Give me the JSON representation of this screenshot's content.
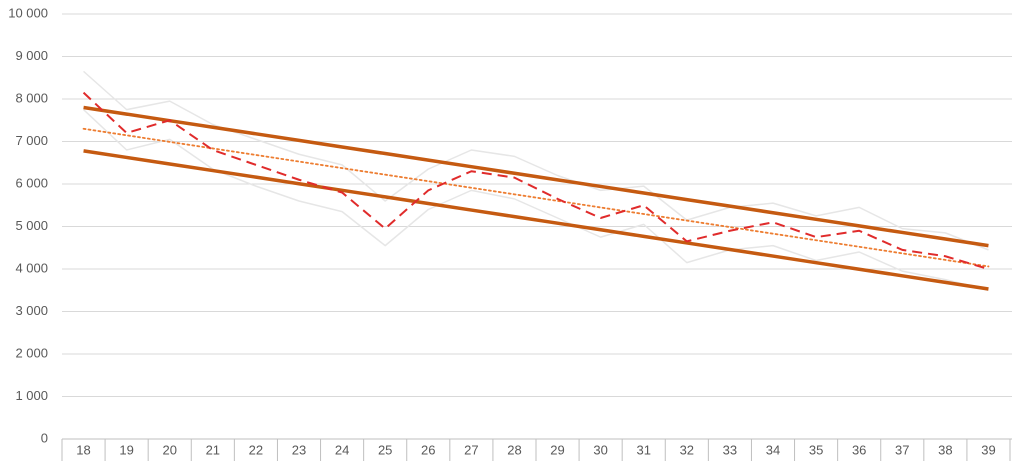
{
  "chart_data": {
    "type": "line",
    "categories": [
      "18",
      "19",
      "20",
      "21",
      "22",
      "23",
      "24",
      "25",
      "26",
      "27",
      "28",
      "29",
      "30",
      "31",
      "32",
      "33",
      "34",
      "35",
      "36",
      "37",
      "38",
      "39"
    ],
    "ylim": [
      0,
      10000
    ],
    "yticks": [
      0,
      {
        "value": 1000,
        "label": "1 000"
      },
      {
        "value": 2000,
        "label": "2 000"
      },
      {
        "value": 3000,
        "label": "3 000"
      },
      {
        "value": 4000,
        "label": "4 000"
      },
      {
        "value": 5000,
        "label": "5 000"
      },
      {
        "value": 6000,
        "label": "6 000"
      },
      {
        "value": 7000,
        "label": "7 000"
      },
      {
        "value": 8000,
        "label": "8 000"
      },
      {
        "value": 9000,
        "label": "9 000"
      },
      {
        "value": 10000,
        "label": "10 000"
      }
    ],
    "grid": true,
    "series": [
      {
        "color": "#e6e6e6",
        "style": "solid",
        "line_width": 1.5,
        "values": [
          8650,
          7750,
          7950,
          7400,
          7050,
          6700,
          6450,
          5600,
          6350,
          6800,
          6650,
          6200,
          5850,
          5950,
          5150,
          5450,
          5550,
          5250,
          5450,
          4950,
          4850,
          4450
        ]
      },
      {
        "color": "#e6e6e6",
        "style": "solid",
        "line_width": 1.5,
        "values": [
          7750,
          6800,
          7050,
          6350,
          5950,
          5600,
          5350,
          4550,
          5400,
          5850,
          5650,
          5200,
          4750,
          5050,
          4150,
          4450,
          4550,
          4200,
          4400,
          3950,
          3750,
          3500
        ]
      },
      {
        "color": "#c55a11",
        "style": "solid",
        "line_width": 3.5,
        "values": [
          7800,
          7645,
          7490,
          7336,
          7181,
          7026,
          6871,
          6717,
          6562,
          6407,
          6252,
          6098,
          5943,
          5788,
          5633,
          5479,
          5324,
          5169,
          5014,
          4860,
          4705,
          4550
        ]
      },
      {
        "color": "#c55a11",
        "style": "solid",
        "line_width": 3.5,
        "values": [
          6780,
          6625,
          6470,
          6316,
          6161,
          6006,
          5851,
          5697,
          5542,
          5387,
          5232,
          5078,
          4923,
          4768,
          4613,
          4459,
          4304,
          4149,
          3994,
          3840,
          3685,
          3530
        ]
      },
      {
        "color": "#ed7d31",
        "style": "dotted",
        "line_width": 1.8,
        "values": [
          7300,
          7146,
          6991,
          6837,
          6683,
          6528,
          6374,
          6220,
          6066,
          5911,
          5757,
          5603,
          5448,
          5294,
          5140,
          4986,
          4831,
          4677,
          4523,
          4368,
          4214,
          4060
        ]
      },
      {
        "color": "#e02b2b",
        "style": "dashed",
        "line_width": 2,
        "values": [
          8150,
          7200,
          7500,
          6800,
          6450,
          6100,
          5800,
          4950,
          5850,
          6300,
          6150,
          5650,
          5200,
          5500,
          4650,
          4900,
          5100,
          4750,
          4900,
          4450,
          4300,
          4000
        ]
      }
    ]
  }
}
